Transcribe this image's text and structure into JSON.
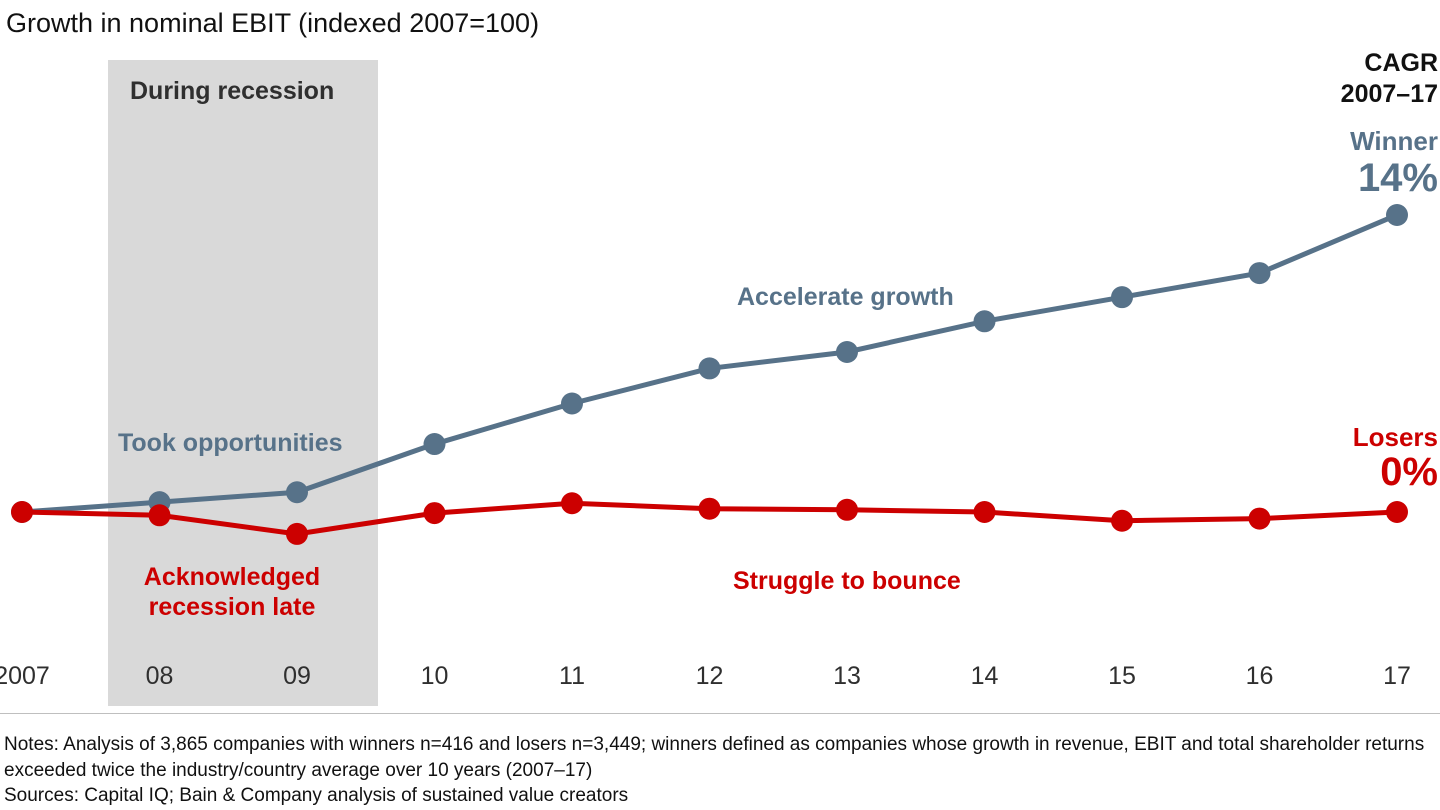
{
  "chart_data": {
    "type": "line",
    "title": "Growth in nominal EBIT (indexed 2007=100)",
    "x_categories": [
      "2007",
      "08",
      "09",
      "10",
      "11",
      "12",
      "13",
      "14",
      "15",
      "16",
      "17"
    ],
    "index_base": 100,
    "grid": false,
    "legend_position": "none",
    "series": [
      {
        "name": "Winners",
        "color": "#577289",
        "values": [
          100,
          109,
          118,
          162,
          199,
          231,
          246,
          274,
          296,
          318,
          371
        ],
        "end_label": "Winner",
        "cagr": "14%"
      },
      {
        "name": "Losers",
        "color": "#cc0000",
        "values": [
          100,
          97,
          80,
          99,
          108,
          103,
          102,
          100,
          92,
          94,
          100
        ],
        "end_label": "Losers",
        "cagr": "0%"
      }
    ],
    "recession_band": {
      "label": "During recession",
      "start_category": "08",
      "end_category": "09",
      "color": "#d9d9d9"
    },
    "annotations": {
      "during_recession": "During recession",
      "took_opportunities": "Took opportunities",
      "acknowledged": "Acknowledged recession late",
      "accelerate": "Accelerate growth",
      "struggle": "Struggle to bounce",
      "cagr_header": "CAGR\n2007–17"
    },
    "notes": "Notes: Analysis of 3,865 companies with winners n=416 and losers n=3,449; winners defined as companies whose growth in revenue, EBIT and total shareholder returns exceeded twice the industry/country average over 10 years (2007–17)",
    "sources": "Sources: Capital IQ; Bain & Company analysis of sustained value creators"
  }
}
